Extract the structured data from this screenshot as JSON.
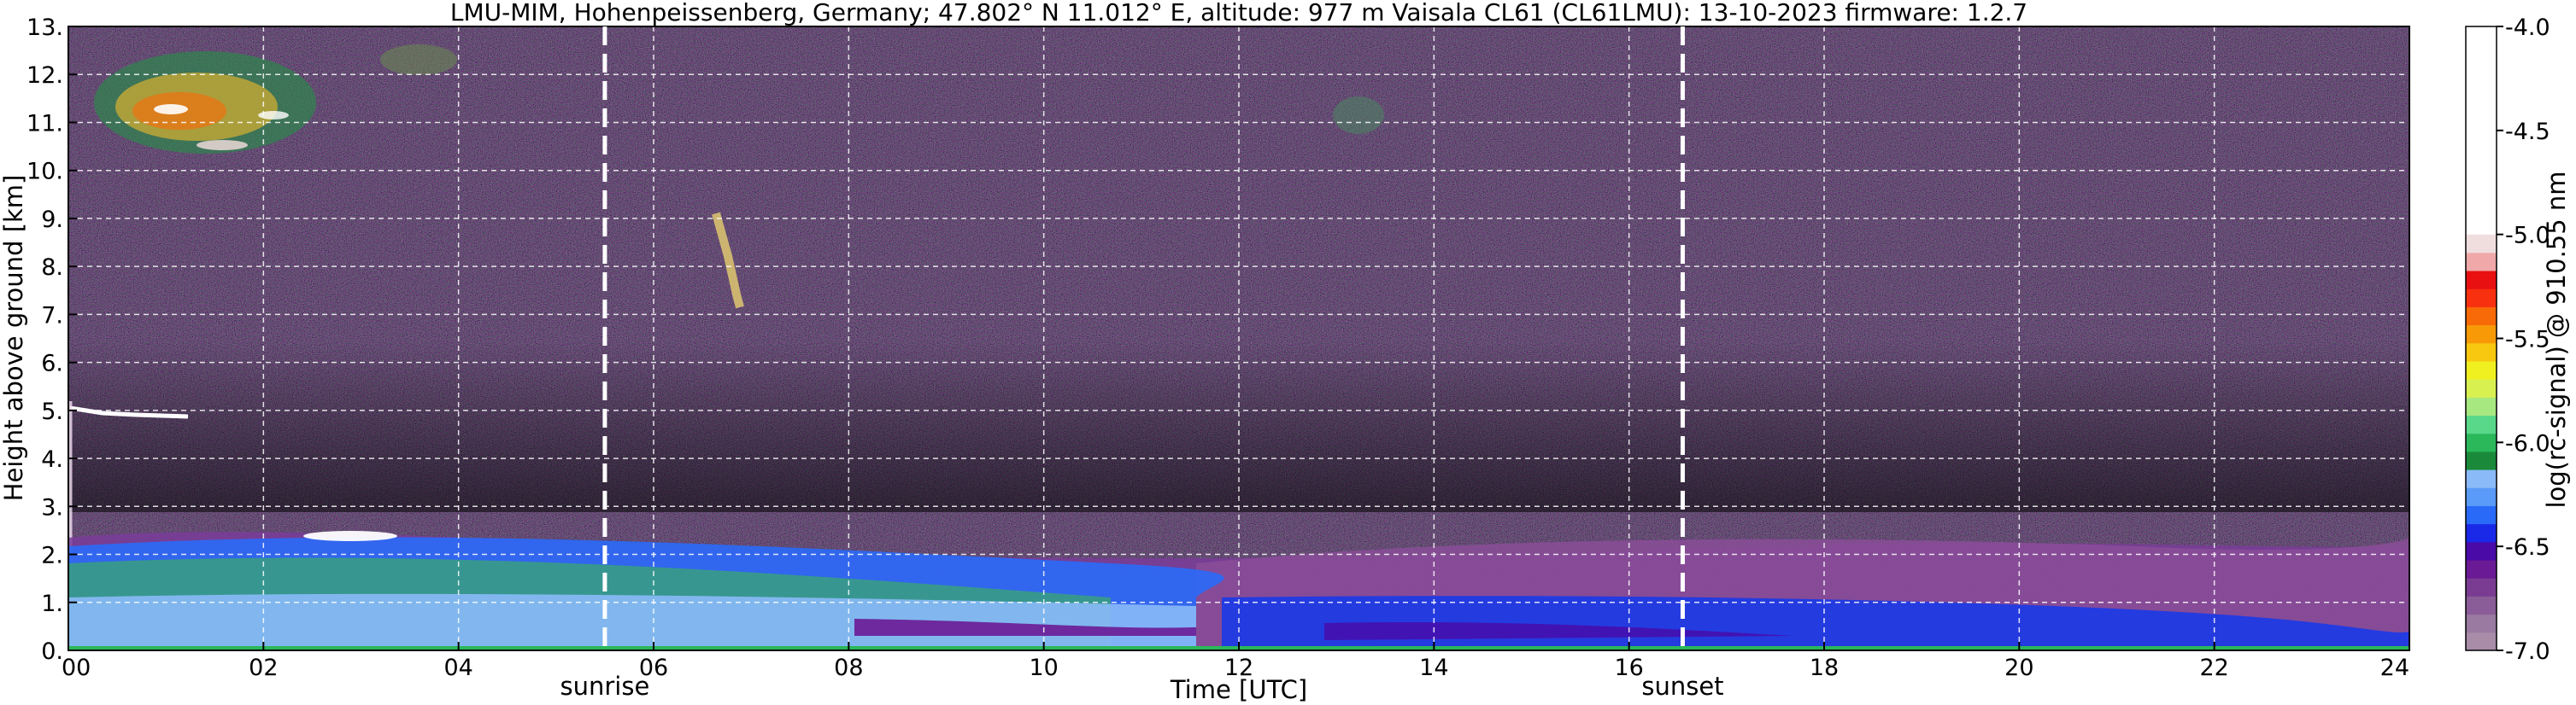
{
  "chart_data": {
    "type": "heatmap",
    "title": "LMU-MIM, Hohenpeissenberg, Germany; 47.802° N 11.012° E, altitude: 977 m    Vaisala CL61 (CL61LMU): 13-10-2023    firmware: 1.2.7",
    "xlabel": "Time [UTC]",
    "ylabel": "Height above ground [km]",
    "colorbar_label": "log(rc-signal) @ 910.55 nm",
    "xlim": [
      0,
      24
    ],
    "ylim": [
      0,
      13
    ],
    "x_ticks": [
      "00",
      "02",
      "04",
      "06",
      "08",
      "10",
      "12",
      "14",
      "16",
      "18",
      "20",
      "22",
      "24"
    ],
    "y_ticks": [
      "0.",
      "1.",
      "2.",
      "3.",
      "4.",
      "5.",
      "6.",
      "7.",
      "8.",
      "9.",
      "10.",
      "11.",
      "12.",
      "13."
    ],
    "colorbar_range": [
      -7.0,
      -4.0
    ],
    "colorbar_ticks": [
      "-4.0",
      "-4.5",
      "-5.0",
      "-5.5",
      "-6.0",
      "-6.5",
      "-7.0"
    ],
    "grid": true,
    "events": [
      {
        "name": "sunrise",
        "time_utc": 5.5
      },
      {
        "name": "sunset",
        "time_utc": 16.55
      }
    ],
    "colormap": [
      "#a88ca8",
      "#9a7aa0",
      "#8a5c98",
      "#7a3c92",
      "#6a1a94",
      "#4a0aa8",
      "#1a28e8",
      "#2a6af8",
      "#5a9af8",
      "#8abaf8",
      "#1a8a3a",
      "#2ab85a",
      "#5ad88a",
      "#a8e880",
      "#d8f050",
      "#f0f020",
      "#f8c810",
      "#f89a08",
      "#f86a08",
      "#f83010",
      "#e81010",
      "#f0a8a8",
      "#f0dede",
      "#ffffff"
    ]
  }
}
